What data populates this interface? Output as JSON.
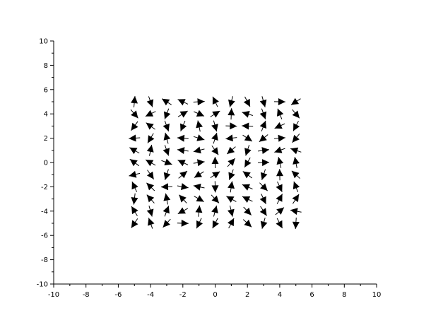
{
  "chart_data": {
    "type": "quiver",
    "title": "",
    "xlabel": "",
    "ylabel": "",
    "xlim": [
      -10,
      10
    ],
    "ylim": [
      -10,
      10
    ],
    "grid": false,
    "legend": "none",
    "xticks": [
      "-10",
      "-8",
      "-6",
      "-4",
      "-2",
      "0",
      "2",
      "4",
      "6",
      "8",
      "10"
    ],
    "yticks": [
      "-10",
      "-8",
      "-6",
      "-4",
      "-2",
      "0",
      "2",
      "4",
      "6",
      "8",
      "10"
    ],
    "colors": {
      "arrow": "#000000",
      "axis": "#000000",
      "background": "#ffffff"
    },
    "x": [
      -5,
      -4,
      -3,
      -2,
      -1,
      0,
      1,
      2,
      3,
      4,
      5
    ],
    "y": [
      -5,
      -4,
      -3,
      -2,
      -1,
      0,
      1,
      2,
      3,
      4,
      5
    ],
    "grid_shape": "x columns by y rows",
    "vectors_note": "Each (x, y) grid point carries a random-direction arrow of roughly unit length; directions are estimated visually."
  }
}
